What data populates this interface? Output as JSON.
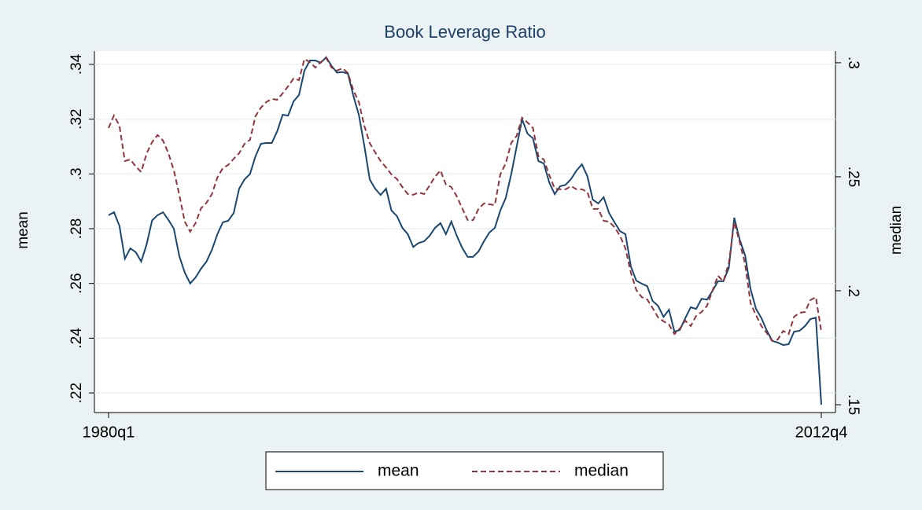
{
  "chart_data": {
    "type": "line",
    "title": "Book Leverage Ratio",
    "categories": [
      "1980q1",
      null,
      null,
      null,
      null,
      null,
      null,
      null,
      null,
      null,
      null,
      null,
      null,
      null,
      null,
      null,
      null,
      null,
      null,
      null,
      null,
      null,
      null,
      null,
      null,
      null,
      null,
      null,
      null,
      null,
      null,
      null,
      null,
      null,
      null,
      null,
      null,
      null,
      null,
      null,
      null,
      null,
      null,
      null,
      null,
      null,
      null,
      null,
      null,
      null,
      null,
      null,
      null,
      null,
      null,
      null,
      null,
      null,
      null,
      null,
      null,
      null,
      null,
      null,
      null,
      null,
      null,
      null,
      null,
      null,
      null,
      null,
      null,
      null,
      null,
      null,
      null,
      null,
      null,
      null,
      null,
      null,
      null,
      null,
      null,
      null,
      null,
      null,
      null,
      null,
      null,
      null,
      null,
      null,
      null,
      null,
      null,
      null,
      null,
      null,
      null,
      null,
      null,
      null,
      null,
      null,
      null,
      null,
      null,
      null,
      null,
      null,
      null,
      null,
      null,
      null,
      null,
      null,
      null,
      null,
      null,
      null,
      null,
      null,
      null,
      null,
      null,
      null,
      null,
      null,
      null,
      "2012q4"
    ],
    "ylabel": "mean",
    "y2label": "median",
    "ylim": [
      0.2137,
      0.344
    ],
    "yticks": [
      {
        "value": 0.22,
        "label": ".22"
      },
      {
        "value": 0.24,
        "label": ".24"
      },
      {
        "value": 0.26,
        "label": ".26"
      },
      {
        "value": 0.28,
        "label": ".28"
      },
      {
        "value": 0.3,
        "label": ".3"
      },
      {
        "value": 0.32,
        "label": ".32"
      },
      {
        "value": 0.34,
        "label": ".34"
      }
    ],
    "y2lim": [
      0.1476,
      0.3041
    ],
    "y2ticks": [
      {
        "value": 0.15,
        "label": ".15"
      },
      {
        "value": 0.2,
        "label": ".2"
      },
      {
        "value": 0.25,
        "label": ".25"
      },
      {
        "value": 0.3,
        "label": ".3"
      }
    ],
    "grid": true,
    "legend": "bottom",
    "series": [
      {
        "name": "mean",
        "color": "#1a476f",
        "line_style": "solid",
        "values": [
          0.2849,
          0.286,
          0.281,
          0.269,
          0.2728,
          0.2714,
          0.268,
          0.2743,
          0.283,
          0.2849,
          0.286,
          0.2832,
          0.28,
          0.27,
          0.264,
          0.26,
          0.2622,
          0.2654,
          0.268,
          0.2723,
          0.278,
          0.2823,
          0.2829,
          0.2857,
          0.2946,
          0.298,
          0.3,
          0.3064,
          0.311,
          0.3113,
          0.3113,
          0.3156,
          0.3216,
          0.3213,
          0.3265,
          0.3288,
          0.3377,
          0.3414,
          0.3414,
          0.3406,
          0.3426,
          0.3394,
          0.337,
          0.3372,
          0.3366,
          0.3285,
          0.3216,
          0.3104,
          0.298,
          0.2946,
          0.2923,
          0.2946,
          0.2866,
          0.2846,
          0.2803,
          0.278,
          0.2733,
          0.2748,
          0.2754,
          0.2774,
          0.2803,
          0.282,
          0.278,
          0.2826,
          0.2774,
          0.273,
          0.2697,
          0.2697,
          0.2717,
          0.2754,
          0.2786,
          0.2803,
          0.2866,
          0.2912,
          0.2998,
          0.3099,
          0.32,
          0.3147,
          0.313,
          0.3047,
          0.3038,
          0.2969,
          0.2926,
          0.2955,
          0.296,
          0.2981,
          0.3012,
          0.3035,
          0.2992,
          0.2906,
          0.2892,
          0.2915,
          0.2857,
          0.2823,
          0.2791,
          0.278,
          0.2662,
          0.261,
          0.2599,
          0.259,
          0.2536,
          0.2518,
          0.2478,
          0.2504,
          0.2424,
          0.243,
          0.2473,
          0.2513,
          0.2507,
          0.2544,
          0.2541,
          0.2573,
          0.2608,
          0.2608,
          0.2656,
          0.284,
          0.276,
          0.2702,
          0.2579,
          0.2507,
          0.2473,
          0.2427,
          0.239,
          0.2384,
          0.2375,
          0.2378,
          0.2424,
          0.2427,
          0.2444,
          0.247,
          0.2475,
          0.2157
        ]
      },
      {
        "name": "median",
        "color": "#90353b",
        "line_style": "dashed",
        "axis": "y2",
        "values": [
          0.2714,
          0.2769,
          0.2724,
          0.2569,
          0.2576,
          0.2545,
          0.2521,
          0.2603,
          0.2652,
          0.2683,
          0.2659,
          0.2603,
          0.2528,
          0.2421,
          0.2303,
          0.2259,
          0.2297,
          0.2362,
          0.2386,
          0.2424,
          0.2497,
          0.2538,
          0.2552,
          0.2579,
          0.2603,
          0.2645,
          0.2662,
          0.2766,
          0.2803,
          0.2828,
          0.2841,
          0.2838,
          0.2866,
          0.2897,
          0.2931,
          0.2924,
          0.3017,
          0.3003,
          0.2979,
          0.3003,
          0.3021,
          0.2979,
          0.2966,
          0.2976,
          0.2955,
          0.2879,
          0.2828,
          0.2724,
          0.2648,
          0.2607,
          0.2569,
          0.2541,
          0.251,
          0.249,
          0.2455,
          0.2424,
          0.2421,
          0.2431,
          0.2424,
          0.2462,
          0.25,
          0.2528,
          0.2466,
          0.2455,
          0.2414,
          0.2362,
          0.231,
          0.231,
          0.2359,
          0.2383,
          0.2379,
          0.2376,
          0.251,
          0.2559,
          0.2648,
          0.2679,
          0.2759,
          0.2738,
          0.2714,
          0.259,
          0.2576,
          0.2507,
          0.2448,
          0.2445,
          0.2445,
          0.2459,
          0.2445,
          0.2445,
          0.2434,
          0.2359,
          0.2359,
          0.2307,
          0.2303,
          0.2279,
          0.2241,
          0.2186,
          0.2079,
          0.2003,
          0.1972,
          0.1962,
          0.1924,
          0.1883,
          0.1866,
          0.1852,
          0.181,
          0.1834,
          0.1869,
          0.1845,
          0.189,
          0.1907,
          0.1934,
          0.2,
          0.2066,
          0.2041,
          0.2121,
          0.23,
          0.2214,
          0.2117,
          0.1945,
          0.1893,
          0.1845,
          0.1814,
          0.1779,
          0.1786,
          0.1824,
          0.181,
          0.1886,
          0.1903,
          0.1907,
          0.1959,
          0.1972,
          0.1821
        ]
      }
    ]
  }
}
